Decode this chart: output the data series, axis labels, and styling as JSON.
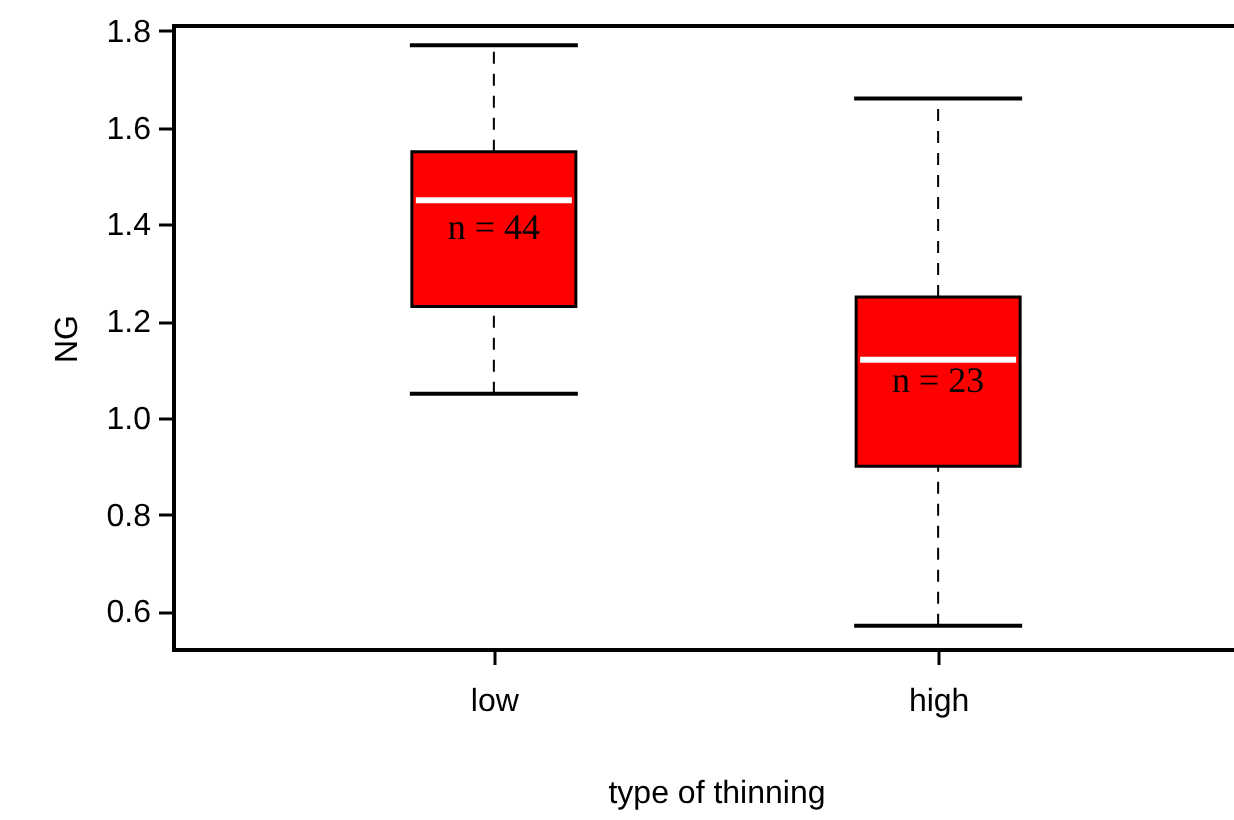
{
  "chart_data": {
    "type": "box",
    "xlabel": "type of thinning",
    "ylabel": "NG",
    "categories": [
      "low",
      "high"
    ],
    "series": [
      {
        "color": "#ff0000",
        "boxes": [
          {
            "low": 1.05,
            "q1": 1.23,
            "median": 1.45,
            "q3": 1.55,
            "high": 1.77
          },
          {
            "low": 0.57,
            "q1": 0.9,
            "median": 1.12,
            "q3": 1.25,
            "high": 1.66
          }
        ]
      }
    ],
    "ylim": [
      0.52,
      1.81
    ],
    "yticks": [
      0.6,
      0.8,
      {
        "value": 1,
        "label": "1.0"
      },
      1.2,
      1.4,
      1.6,
      1.8
    ],
    "annotations": [
      "n = 44",
      "n = 23"
    ]
  }
}
